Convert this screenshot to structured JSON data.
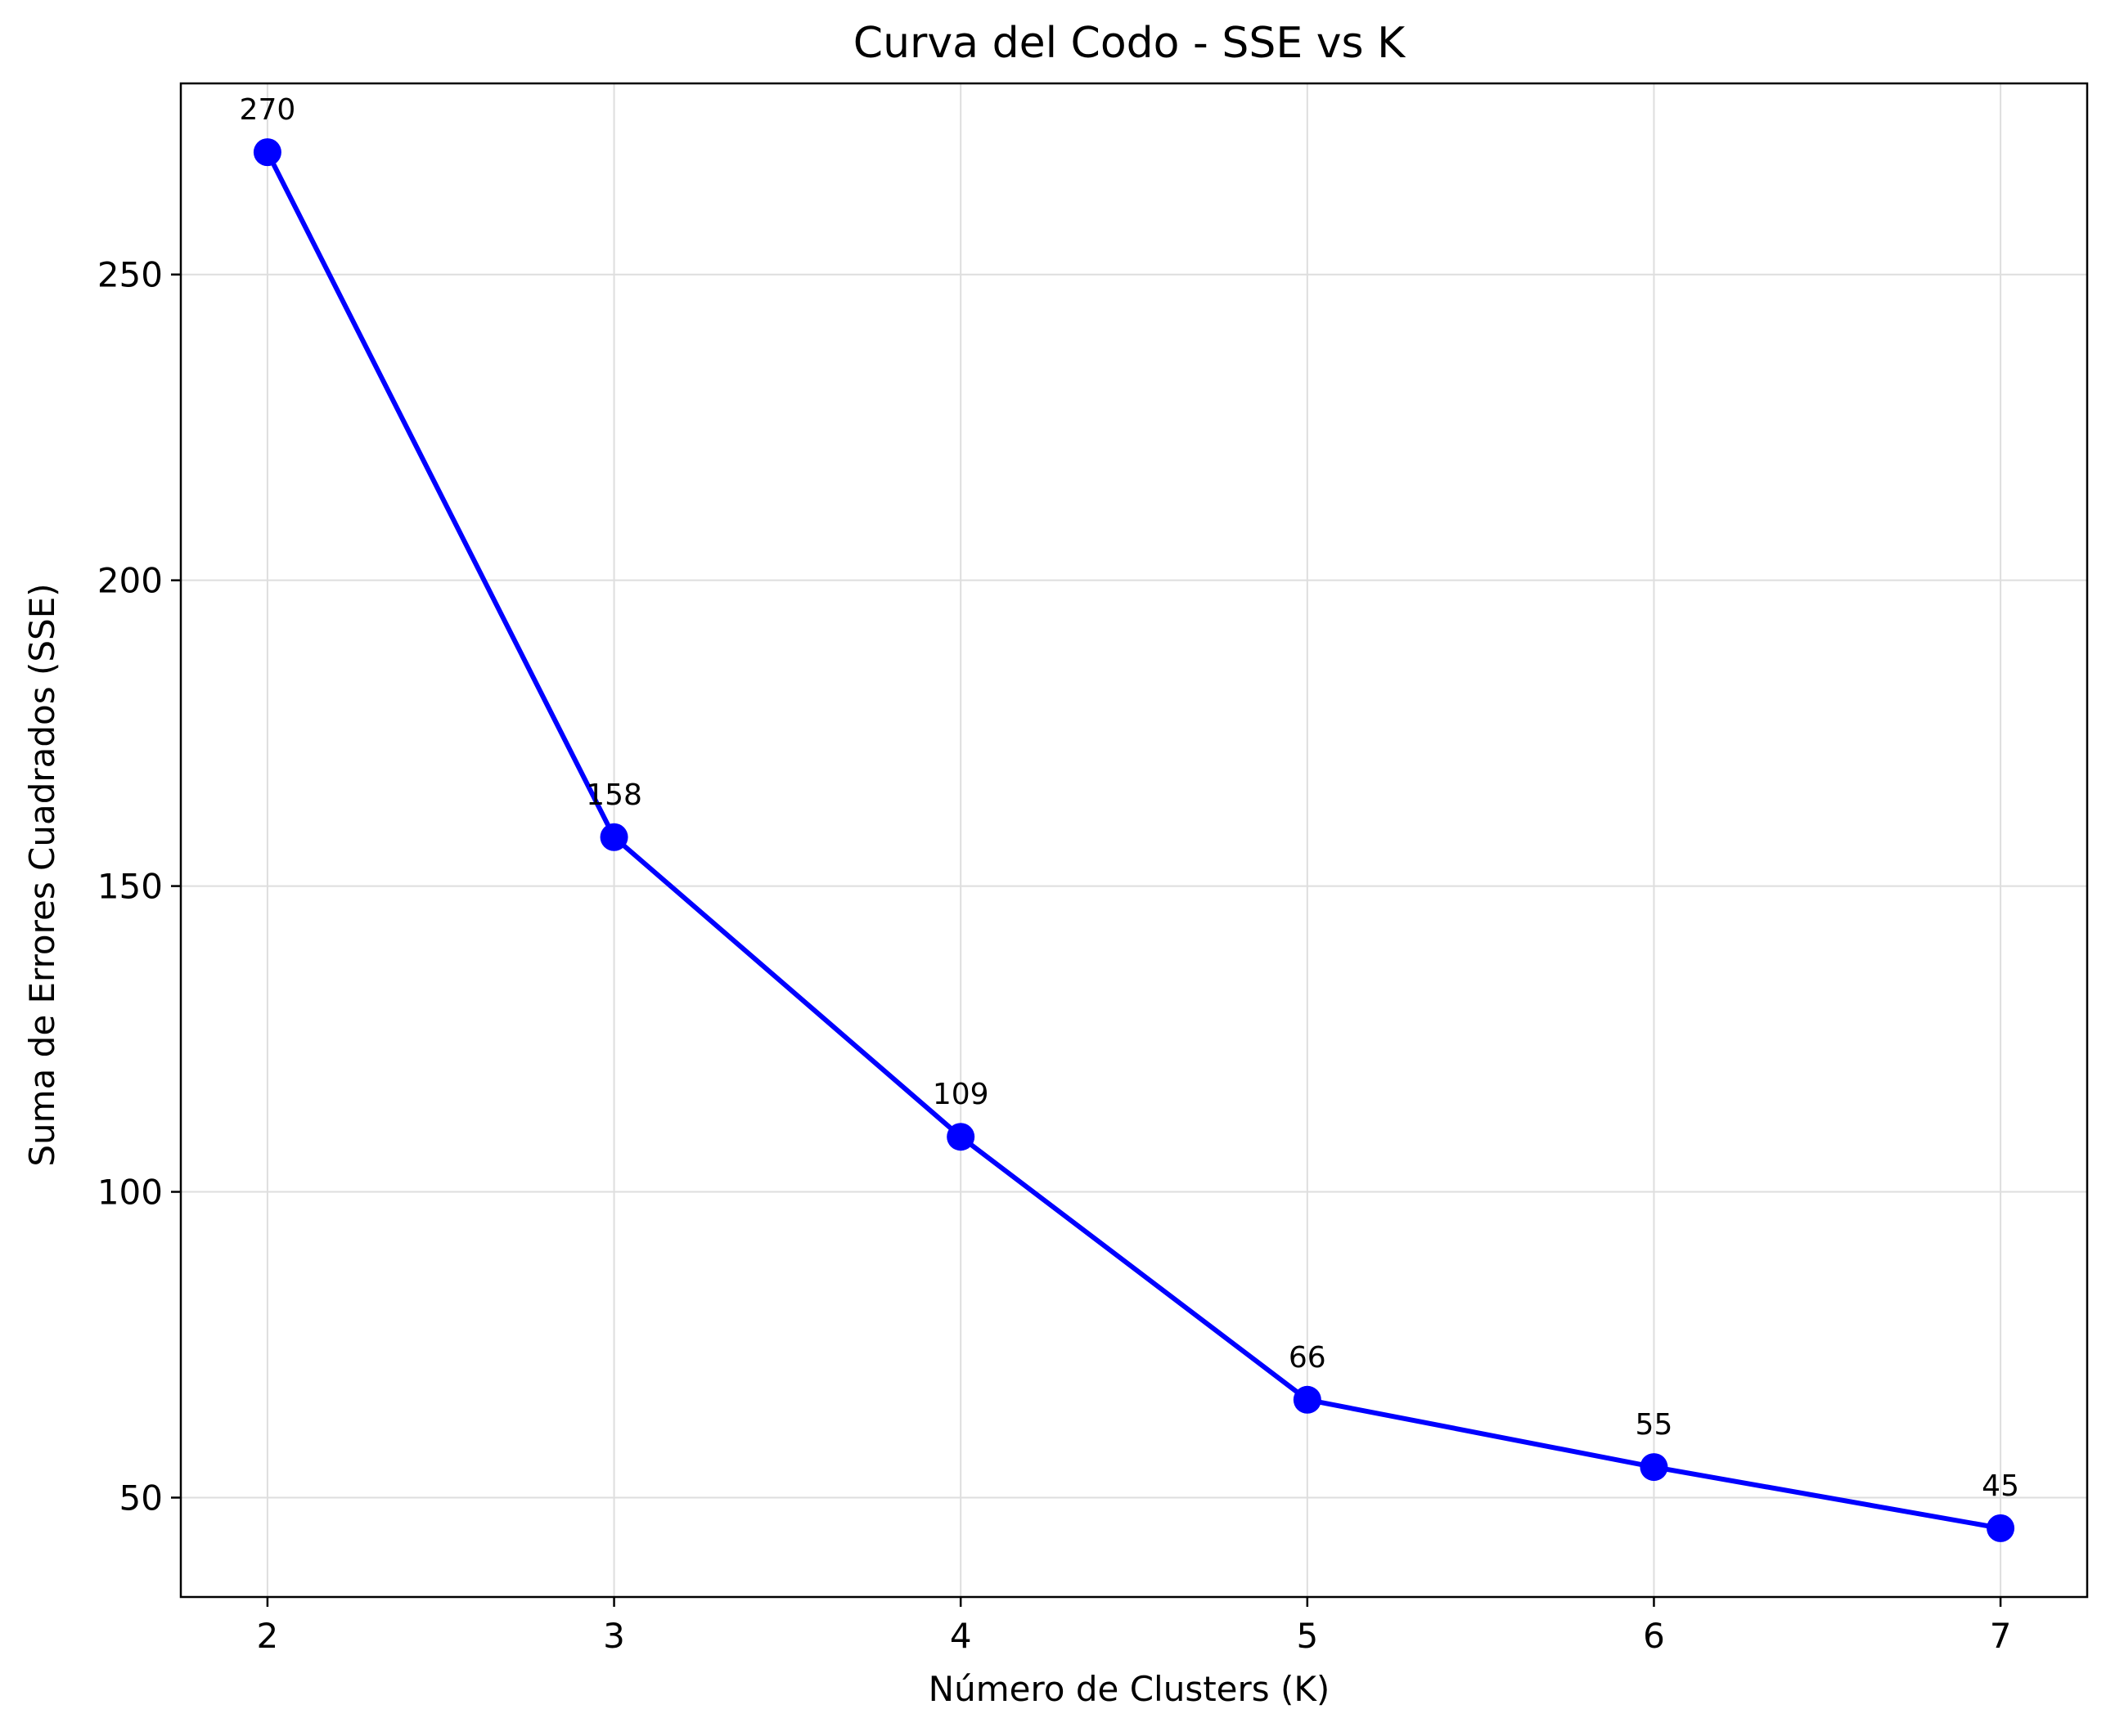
{
  "chart_data": {
    "type": "line",
    "title": "Curva del Codo - SSE vs K",
    "xlabel": "Número de Clusters (K)",
    "ylabel": "Suma de Errores Cuadrados (SSE)",
    "x": [
      2,
      3,
      4,
      5,
      6,
      7
    ],
    "series": [
      {
        "values": [
          270,
          158,
          109,
          66,
          55,
          45
        ],
        "labels": [
          "270",
          "158",
          "109",
          "66",
          "55",
          "45"
        ],
        "color": "#0000ff",
        "marker": "circle"
      }
    ],
    "xticks": [
      2,
      3,
      4,
      5,
      6,
      7
    ],
    "xtick_labels": [
      "2",
      "3",
      "4",
      "5",
      "6",
      "7"
    ],
    "yticks": [
      50,
      100,
      150,
      200,
      250
    ],
    "ytick_labels": [
      "50",
      "100",
      "150",
      "200",
      "250"
    ],
    "xlim": [
      1.75,
      7.25
    ],
    "ylim": [
      33.75,
      281.25
    ],
    "grid": true
  }
}
